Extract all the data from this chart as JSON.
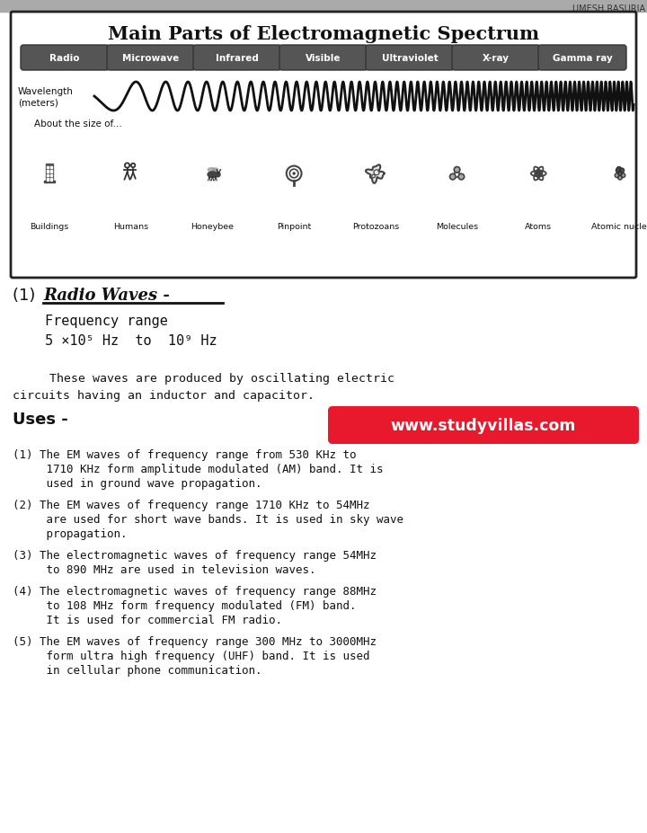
{
  "title": "Main Parts of Electromagnetic Spectrum",
  "bg_color": "#ffffff",
  "border_color": "#222222",
  "spectrum_labels": [
    "Radio",
    "Microwave",
    "Infrared",
    "Visible",
    "Ultraviolet",
    "X-ray",
    "Gamma ray"
  ],
  "wavelength_label": "Wavelength\n(meters)",
  "size_label": "About the size of...",
  "size_items": [
    "Buildings",
    "Humans",
    "Honeybee",
    "Pinpoint",
    "Protozoans",
    "Molecules",
    "Atoms",
    "Atomic nuclei"
  ],
  "section_heading": "(1)  Radio Waves -",
  "freq_range_line1": "     Frequency range",
  "freq_range_line2": "     5 ×10⁵ Hz  to  10⁹ Hz",
  "production_text": "          These waves are produced by oscillating electric\n     circuits having an inductor and capacitor.",
  "uses_heading": "Uses -",
  "watermark_text": "www.studyvillas.com",
  "watermark_bg": "#e8192c",
  "uses_items": [
    "(1) The EM waves of frequency range from 530 KHz to\n     1710 KHz form amplitude modulated (AM) band. It is\n     used in ground wave propagation.",
    "(2) The EM waves of frequency range 1710 KHz to 54MHz\n     are used for short wave bands. It is used in sky wave\n     propagation.",
    "(3) The electromagnetic waves of frequency range 54MHz\n     to 890 MHz are used in television waves.",
    "(4) The electromagnetic waves of frequency range 88MHz\n     to 108 MHz form frequency modulated (FM) band.\n     It is used for commercial FM radio.",
    "(5) The EM waves of frequency range 300 MHz to 3000MHz\n     form ultra high frequency (UHF) band. It is used\n     in cellular phone communication."
  ],
  "header_text": "UMESH RASURIA",
  "pill_color": "#555555",
  "pill_text_color": "#ffffff",
  "top_bar_color": "#888888"
}
